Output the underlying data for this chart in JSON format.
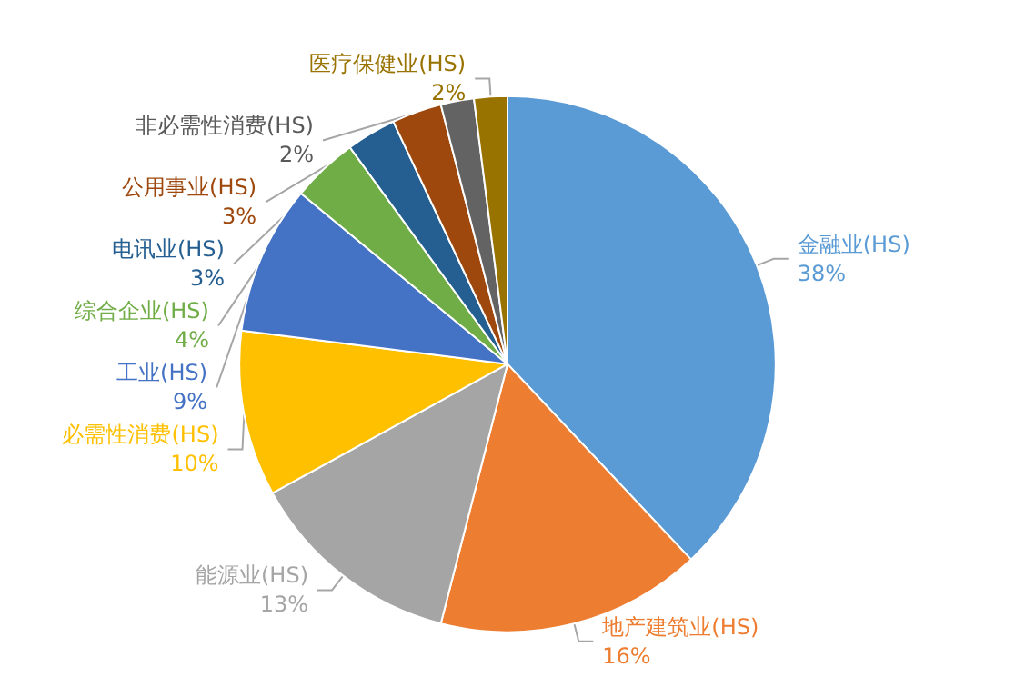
{
  "chart_data": {
    "type": "pie",
    "categories": [
      "金融业(HS)",
      "地产建筑业(HS)",
      "能源业(HS)",
      "必需性消费(HS)",
      "工业(HS)",
      "综合企业(HS)",
      "电讯业(HS)",
      "公用事业(HS)",
      "非必需性消费(HS)",
      "医疗保健业(HS)"
    ],
    "values": [
      38,
      16,
      13,
      10,
      9,
      4,
      3,
      3,
      2,
      2
    ],
    "value_labels": [
      "38%",
      "16%",
      "13%",
      "10%",
      "9%",
      "4%",
      "3%",
      "3%",
      "2%",
      "2%"
    ],
    "colors": [
      "#5b9bd5",
      "#ed7d31",
      "#a5a5a5",
      "#ffc000",
      "#4472c4",
      "#70ad47",
      "#255e91",
      "#9e480e",
      "#636363",
      "#997300"
    ],
    "legend": false
  }
}
